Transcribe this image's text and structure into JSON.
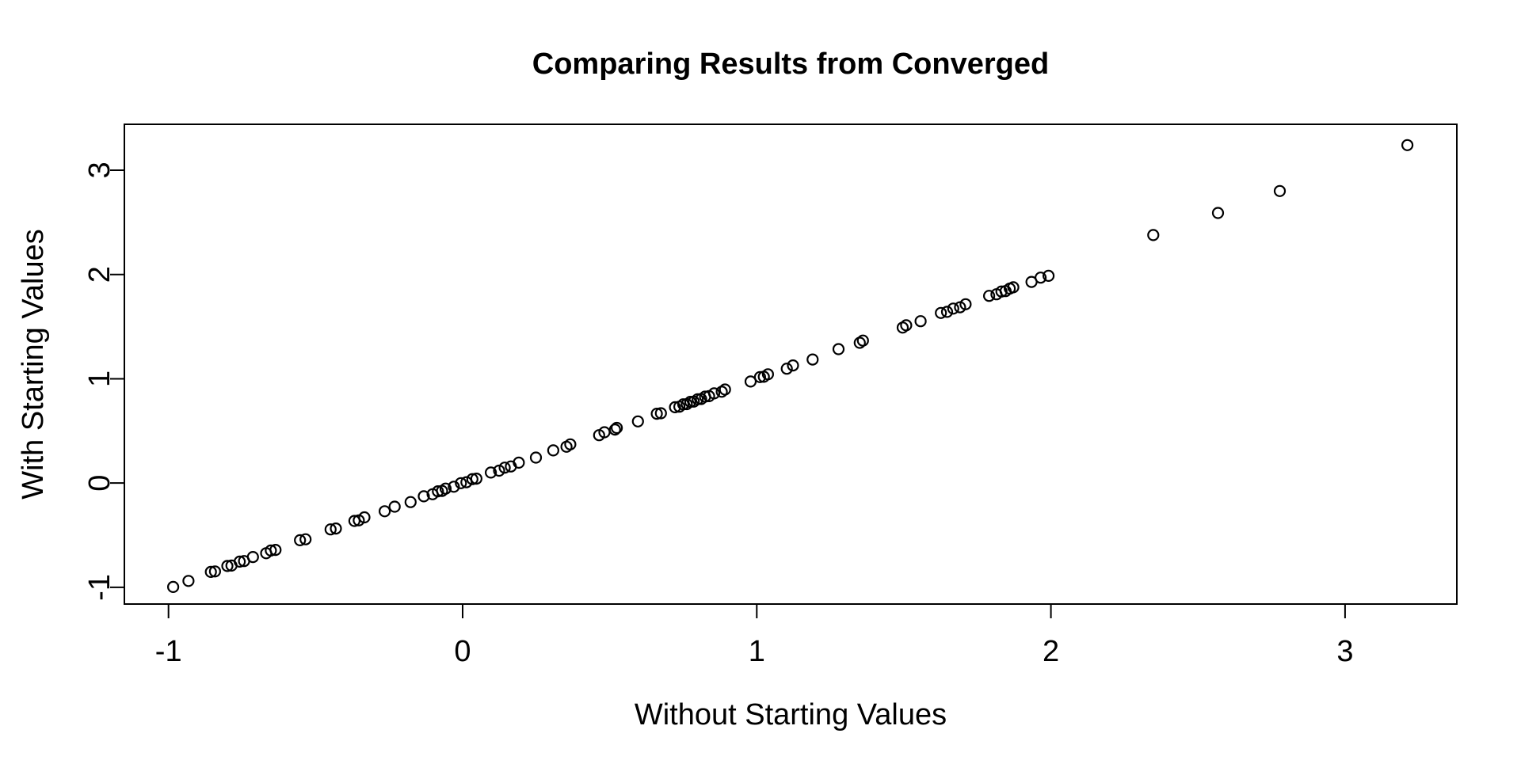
{
  "chart_data": {
    "type": "scatter",
    "title": "Comparing Results from Converged",
    "xlabel": "Without Starting Values",
    "ylabel": "With Starting Values",
    "xlim": [
      -1.15,
      3.38
    ],
    "ylim": [
      -1.16,
      3.44
    ],
    "xticks": [
      "-1",
      "0",
      "1",
      "2",
      "3"
    ],
    "xtick_values": [
      -1,
      0,
      1,
      2,
      3
    ],
    "yticks": [
      "-1",
      "0",
      "1",
      "2",
      "3"
    ],
    "ytick_values": [
      -1,
      0,
      1,
      2,
      3
    ],
    "grid": false,
    "legend": "none",
    "marker": {
      "shape": "open-circle",
      "radius_px": 6.5,
      "stroke_color": "#000000",
      "stroke_width_px": 2.2,
      "fill": "none"
    },
    "points": [
      [
        -0.984,
        -0.996
      ],
      [
        -0.932,
        -0.938
      ],
      [
        -0.856,
        -0.852
      ],
      [
        -0.842,
        -0.847
      ],
      [
        -0.8,
        -0.795
      ],
      [
        -0.786,
        -0.791
      ],
      [
        -0.758,
        -0.753
      ],
      [
        -0.743,
        -0.748
      ],
      [
        -0.713,
        -0.709
      ],
      [
        -0.668,
        -0.673
      ],
      [
        -0.652,
        -0.647
      ],
      [
        -0.636,
        -0.641
      ],
      [
        -0.553,
        -0.548
      ],
      [
        -0.534,
        -0.539
      ],
      [
        -0.449,
        -0.444
      ],
      [
        -0.431,
        -0.436
      ],
      [
        -0.368,
        -0.363
      ],
      [
        -0.353,
        -0.358
      ],
      [
        -0.334,
        -0.329
      ],
      [
        -0.265,
        -0.27
      ],
      [
        -0.231,
        -0.226
      ],
      [
        -0.177,
        -0.182
      ],
      [
        -0.132,
        -0.127
      ],
      [
        -0.102,
        -0.107
      ],
      [
        -0.084,
        -0.079
      ],
      [
        -0.07,
        -0.075
      ],
      [
        -0.058,
        -0.053
      ],
      [
        -0.03,
        -0.035
      ],
      [
        -0.006,
        -0.001
      ],
      [
        0.013,
        0.008
      ],
      [
        0.033,
        0.038
      ],
      [
        0.047,
        0.042
      ],
      [
        0.096,
        0.101
      ],
      [
        0.124,
        0.119
      ],
      [
        0.143,
        0.148
      ],
      [
        0.164,
        0.159
      ],
      [
        0.191,
        0.196
      ],
      [
        0.249,
        0.244
      ],
      [
        0.308,
        0.313
      ],
      [
        0.353,
        0.348
      ],
      [
        0.366,
        0.371
      ],
      [
        0.464,
        0.459
      ],
      [
        0.482,
        0.487
      ],
      [
        0.518,
        0.513
      ],
      [
        0.524,
        0.529
      ],
      [
        0.596,
        0.591
      ],
      [
        0.66,
        0.665
      ],
      [
        0.674,
        0.669
      ],
      [
        0.722,
        0.727
      ],
      [
        0.737,
        0.732
      ],
      [
        0.75,
        0.755
      ],
      [
        0.762,
        0.757
      ],
      [
        0.774,
        0.779
      ],
      [
        0.786,
        0.781
      ],
      [
        0.799,
        0.804
      ],
      [
        0.811,
        0.806
      ],
      [
        0.824,
        0.829
      ],
      [
        0.838,
        0.833
      ],
      [
        0.855,
        0.86
      ],
      [
        0.881,
        0.876
      ],
      [
        0.892,
        0.897
      ],
      [
        0.979,
        0.974
      ],
      [
        1.011,
        1.016
      ],
      [
        1.024,
        1.019
      ],
      [
        1.038,
        1.043
      ],
      [
        1.102,
        1.097
      ],
      [
        1.123,
        1.128
      ],
      [
        1.19,
        1.185
      ],
      [
        1.278,
        1.284
      ],
      [
        1.35,
        1.345
      ],
      [
        1.361,
        1.366
      ],
      [
        1.496,
        1.491
      ],
      [
        1.508,
        1.513
      ],
      [
        1.557,
        1.552
      ],
      [
        1.626,
        1.631
      ],
      [
        1.647,
        1.642
      ],
      [
        1.668,
        1.673
      ],
      [
        1.691,
        1.686
      ],
      [
        1.71,
        1.715
      ],
      [
        1.79,
        1.795
      ],
      [
        1.815,
        1.81
      ],
      [
        1.832,
        1.837
      ],
      [
        1.846,
        1.841
      ],
      [
        1.86,
        1.865
      ],
      [
        1.872,
        1.877
      ],
      [
        1.934,
        1.929
      ],
      [
        1.965,
        1.97
      ],
      [
        1.992,
        1.987
      ],
      [
        2.348,
        2.378
      ],
      [
        2.568,
        2.59
      ],
      [
        2.778,
        2.8
      ],
      [
        3.212,
        3.24
      ]
    ]
  },
  "style": {
    "background_color": "#ffffff",
    "foreground_color": "#000000"
  }
}
